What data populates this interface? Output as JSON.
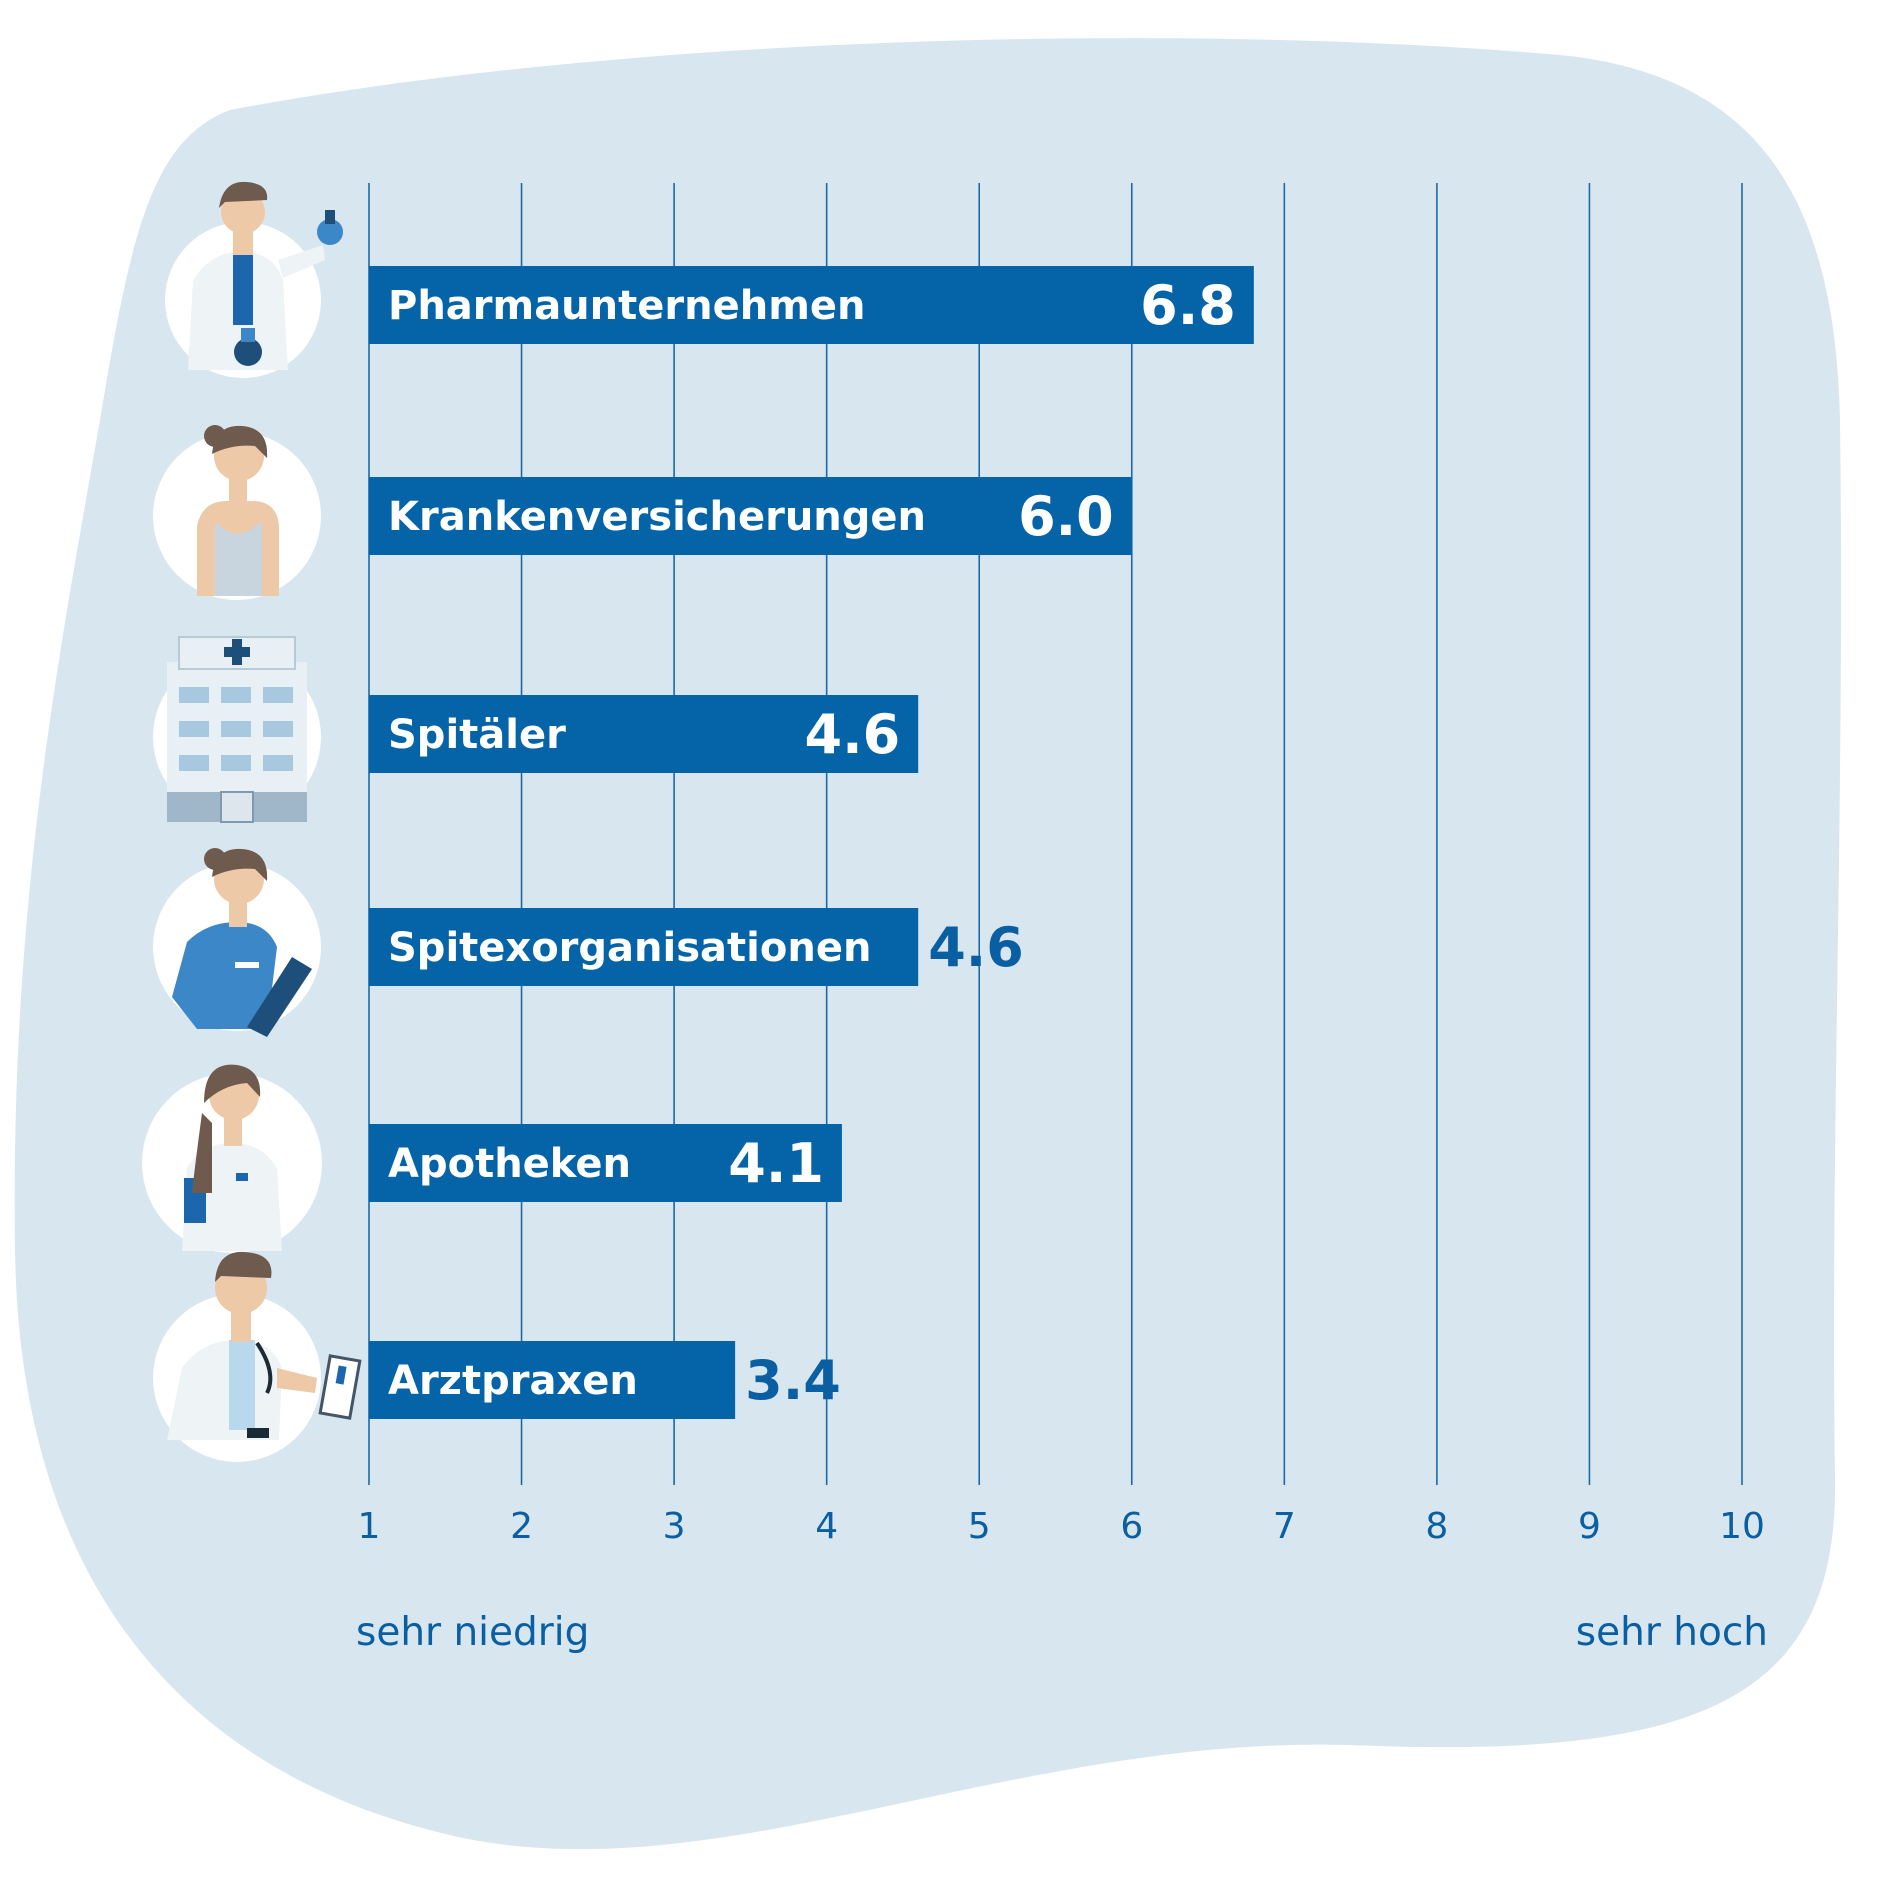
{
  "colors": {
    "background_blob": "#d8e6ef",
    "bar": "#0563a8",
    "grid": "#1a6aa8",
    "text_dark": "#0a5fa3"
  },
  "chart_data": {
    "type": "bar",
    "orientation": "horizontal",
    "categories": [
      "Pharmaunternehmen",
      "Krankenversicherungen",
      "Spitäler",
      "Spitexorganisationen",
      "Apotheken",
      "Arztpraxen"
    ],
    "value_labels": [
      "6.8",
      "6.0",
      "4.6",
      "4.6",
      "4.1",
      "3.4"
    ],
    "values": [
      6.8,
      6.0,
      4.6,
      4.6,
      4.1,
      3.4
    ],
    "icons": [
      "pharma-researcher-icon",
      "insured-woman-icon",
      "hospital-building-icon",
      "spitex-nurse-icon",
      "pharmacist-icon",
      "doctor-icon"
    ],
    "xlim": [
      1,
      10
    ],
    "ticks": [
      1,
      2,
      3,
      4,
      5,
      6,
      7,
      8,
      9,
      10
    ],
    "tick_labels": [
      "1",
      "2",
      "3",
      "4",
      "5",
      "6",
      "7",
      "8",
      "9",
      "10"
    ],
    "axis_low_label": "sehr niedrig",
    "axis_high_label": "sehr hoch",
    "grid": true
  }
}
